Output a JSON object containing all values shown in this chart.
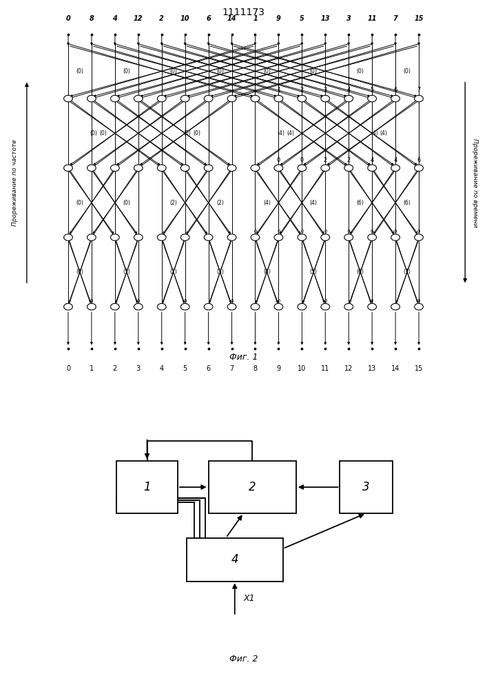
{
  "title": "1111173",
  "fig1_caption": "Фиг. 1",
  "fig2_caption": "Фиг. 2",
  "top_labels": [
    "0",
    "8",
    "4",
    "12",
    "2",
    "10",
    "6",
    "14",
    "1",
    "9",
    "5",
    "13",
    "3",
    "11",
    "7",
    "15"
  ],
  "bottom_labels": [
    "0",
    "1",
    "2",
    "3",
    "4",
    "5",
    "6",
    "7",
    "8",
    "9",
    "10",
    "11",
    "12",
    "13",
    "14",
    "15"
  ],
  "left_axis_label": "Прореживание по частоте",
  "right_axis_label": "Прореживание по времени",
  "bg_color": "#ffffff",
  "line_color": "#000000",
  "n": 16,
  "n_stages": 4
}
